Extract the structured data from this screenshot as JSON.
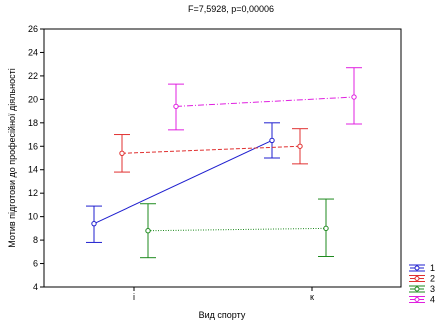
{
  "chart_data": {
    "type": "line",
    "title": "F=7,5928, p=0,00006",
    "xlabel": "Вид спорту",
    "ylabel": "Мотив підготови до професійної діяльності",
    "categories": [
      "і",
      "к"
    ],
    "ylim": [
      4,
      26
    ],
    "yticks": [
      4,
      6,
      8,
      10,
      12,
      14,
      16,
      18,
      20,
      22,
      24,
      26
    ],
    "grid": false,
    "legend": "bottom-right",
    "error_bars": true,
    "series": [
      {
        "name": "1",
        "color": "#1f1fcf",
        "line_style": "solid",
        "means": [
          9.4,
          16.5
        ],
        "lower": [
          7.8,
          15.0
        ],
        "upper": [
          10.9,
          18.0
        ]
      },
      {
        "name": "2",
        "color": "#e03030",
        "line_style": "dashed",
        "means": [
          15.4,
          16.0
        ],
        "lower": [
          13.8,
          14.5
        ],
        "upper": [
          17.0,
          17.5
        ]
      },
      {
        "name": "3",
        "color": "#1e8a1e",
        "line_style": "dotted",
        "means": [
          8.8,
          9.0
        ],
        "lower": [
          6.5,
          6.6
        ],
        "upper": [
          11.1,
          11.5
        ]
      },
      {
        "name": "4",
        "color": "#e020e0",
        "line_style": "dashdot",
        "means": [
          19.4,
          20.2
        ],
        "lower": [
          17.4,
          17.9
        ],
        "upper": [
          21.3,
          22.7
        ]
      }
    ]
  }
}
